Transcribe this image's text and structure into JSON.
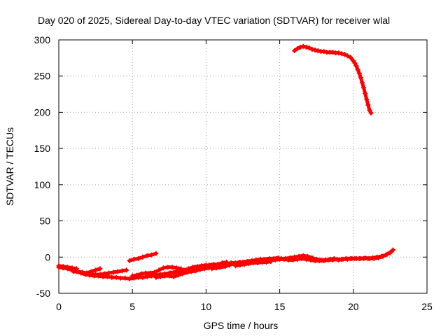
{
  "chart_data": {
    "type": "scatter",
    "title": "Day 020 of 2025, Sidereal Day-to-day VTEC variation (SDTVAR) for receiver wlal",
    "xlabel": "GPS time / hours",
    "ylabel": "SDTVAR / TECUs",
    "xlim": [
      0,
      25
    ],
    "ylim": [
      -50,
      300
    ],
    "xticks": [
      0,
      5,
      10,
      15,
      20,
      25
    ],
    "yticks": [
      -50,
      0,
      50,
      100,
      150,
      200,
      250,
      300
    ],
    "grid": true,
    "marker_color": "#ff0000",
    "series": [
      {
        "x": [
          0.0,
          0.3,
          0.6,
          0.9,
          1.2,
          1.5,
          1.8,
          2.1,
          2.4,
          2.7,
          3.0,
          3.3,
          3.6,
          3.9,
          4.2,
          4.5,
          4.8,
          5.1,
          5.4,
          5.7,
          6.0,
          6.3,
          6.6,
          6.9,
          7.2,
          7.5,
          7.8,
          8.1,
          8.4,
          8.7,
          9.0,
          9.3,
          9.6,
          9.9,
          10.2,
          10.5,
          10.8,
          11.1,
          11.4,
          11.7,
          12.0,
          12.3,
          12.6,
          12.9,
          13.2,
          13.5,
          13.8,
          14.1,
          14.4,
          14.7,
          15.0,
          15.3,
          15.6,
          15.9,
          16.2,
          16.5,
          16.8,
          17.1,
          17.4,
          17.7,
          18.0,
          18.3,
          18.6,
          18.9,
          19.2,
          19.5,
          19.8,
          20.1,
          20.4,
          20.7,
          21.0,
          21.3,
          21.6,
          21.9,
          22.2,
          22.5,
          22.7
        ],
        "y": [
          -14,
          -15,
          -16,
          -18,
          -20,
          -22,
          -24,
          -25,
          -26,
          -26,
          -27,
          -27,
          -28,
          -28,
          -29,
          -29,
          -30,
          -29,
          -28,
          -28,
          -27,
          -26,
          -25,
          -24,
          -23,
          -22,
          -21,
          -20,
          -19,
          -18,
          -16,
          -14,
          -13,
          -12,
          -11,
          -10,
          -10,
          -9,
          -9,
          -8,
          -8,
          -7,
          -7,
          -6,
          -6,
          -5,
          -5,
          -4,
          -4,
          -4,
          -3,
          -3,
          -4,
          -4,
          -3,
          -2,
          -3,
          -4,
          -5,
          -5,
          -5,
          -4,
          -4,
          -3,
          -3,
          -2,
          -2,
          -2,
          -2,
          -2,
          -2,
          -1,
          0,
          1,
          3,
          6,
          10
        ]
      },
      {
        "x": [
          0.0,
          0.3,
          0.6,
          0.9,
          1.2
        ],
        "y": [
          -12,
          -13,
          -14,
          -15,
          -16
        ]
      },
      {
        "x": [
          1.0,
          1.3,
          1.6,
          1.9,
          2.2,
          2.5,
          2.8
        ],
        "y": [
          -20,
          -20,
          -21,
          -22,
          -20,
          -18,
          -16
        ]
      },
      {
        "x": [
          2.2,
          2.5,
          2.8,
          3.1,
          3.4,
          3.7,
          4.0,
          4.3,
          4.6
        ],
        "y": [
          -24,
          -24,
          -24,
          -23,
          -22,
          -21,
          -20,
          -19,
          -18
        ]
      },
      {
        "x": [
          4.8,
          5.1,
          5.4,
          5.7,
          6.0,
          6.3,
          6.6
        ],
        "y": [
          -5,
          -3,
          -2,
          0,
          2,
          3,
          5
        ]
      },
      {
        "x": [
          5.0,
          5.3,
          5.6,
          5.9,
          6.2,
          6.5,
          6.8,
          7.1,
          7.4,
          7.7,
          8.0,
          8.3
        ],
        "y": [
          -26,
          -25,
          -23,
          -22,
          -22,
          -21,
          -18,
          -15,
          -14,
          -14,
          -15,
          -16
        ]
      },
      {
        "x": [
          6.6,
          6.9,
          7.2,
          7.5,
          7.8,
          8.1,
          8.4,
          8.7,
          9.0,
          9.3,
          9.6,
          9.9,
          10.2,
          10.5,
          10.8,
          11.1,
          11.4
        ],
        "y": [
          -28,
          -27,
          -26,
          -26,
          -27,
          -25,
          -23,
          -21,
          -20,
          -19,
          -17,
          -16,
          -15,
          -12,
          -10,
          -8,
          -7
        ]
      },
      {
        "x": [
          7.6,
          7.9,
          8.2,
          8.5,
          8.8,
          9.1,
          9.4,
          9.7,
          10.0,
          10.3,
          10.6,
          10.9
        ],
        "y": [
          -22,
          -21,
          -20,
          -18,
          -16,
          -14,
          -13,
          -12,
          -11,
          -12,
          -13,
          -14
        ]
      },
      {
        "x": [
          10.4,
          10.7,
          11.0,
          11.3,
          11.6,
          11.9,
          12.2,
          12.5,
          12.8,
          13.1,
          13.4,
          13.7,
          14.0,
          14.3,
          14.6,
          14.9
        ],
        "y": [
          -16,
          -15,
          -14,
          -13,
          -11,
          -9,
          -8,
          -7,
          -6,
          -5,
          -4,
          -3,
          -3,
          -2,
          -2,
          -1
        ]
      },
      {
        "x": [
          12.0,
          12.3,
          12.6,
          12.9,
          13.2,
          13.5,
          13.8,
          14.1,
          14.4
        ],
        "y": [
          -12,
          -11,
          -10,
          -9,
          -8,
          -8,
          -7,
          -7,
          -6
        ]
      },
      {
        "x": [
          13.0,
          13.3,
          13.6,
          13.9,
          14.2,
          14.5,
          14.8,
          15.1,
          15.4,
          15.7,
          16.0,
          16.3,
          16.6,
          16.9,
          17.2,
          17.5,
          17.8,
          18.1,
          18.4,
          18.7
        ],
        "y": [
          -8,
          -7,
          -5,
          -4,
          -3,
          -3,
          -2,
          -2,
          -2,
          -1,
          0,
          1,
          2,
          1,
          -1,
          -3,
          -4,
          -4,
          -3,
          -2
        ]
      },
      {
        "x": [
          19.0,
          19.3,
          19.6,
          19.9,
          20.2,
          20.5,
          20.8,
          21.1,
          21.4,
          21.7,
          22.0,
          22.3,
          22.6
        ],
        "y": [
          -4,
          -3,
          -3,
          -2,
          -2,
          -2,
          -1,
          -2,
          -2,
          -1,
          1,
          4,
          8
        ]
      },
      {
        "x": [
          16.0,
          16.2,
          16.4,
          16.6,
          16.8,
          17.0,
          17.2,
          17.4,
          17.6,
          17.8,
          18.0,
          18.2,
          18.4,
          18.6,
          18.8,
          19.0,
          19.2,
          19.4,
          19.6,
          19.8,
          20.0,
          20.1,
          20.2,
          20.3,
          20.4,
          20.5,
          20.6,
          20.7,
          20.8,
          20.9,
          21.0,
          21.1,
          21.2
        ],
        "y": [
          285,
          288,
          290,
          291,
          290,
          289,
          287,
          286,
          285,
          284,
          284,
          283,
          283,
          283,
          282,
          282,
          281,
          280,
          278,
          276,
          271,
          268,
          264,
          259,
          254,
          248,
          241,
          234,
          226,
          218,
          210,
          203,
          199
        ]
      }
    ]
  }
}
